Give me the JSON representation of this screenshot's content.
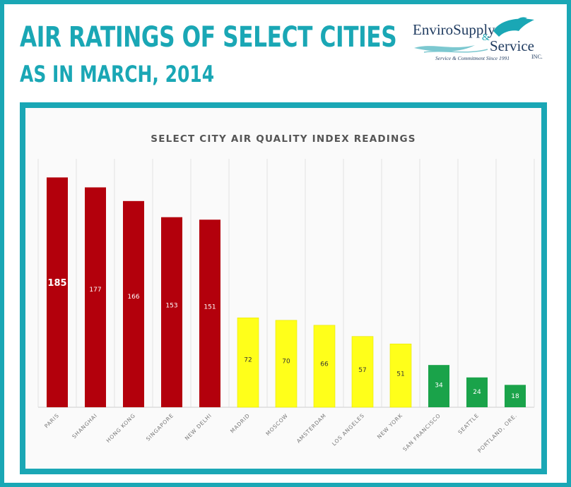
{
  "header": {
    "title": "AIR RATINGS OF SELECT CITIES",
    "subtitle": "AS IN MARCH, 2014"
  },
  "logo": {
    "name_line1": "EnviroSupply",
    "ampersand": "&",
    "name_line2": "Service",
    "suffix": "INC.",
    "tagline": "Service & Commitment Since 1991",
    "icon": "dolphin-icon"
  },
  "colors": {
    "accent": "#1aa7b5",
    "red": "#b3000c",
    "yellow": "#ffff1a",
    "green": "#1aa34a"
  },
  "chart_data": {
    "type": "bar",
    "title": "SELECT CITY AIR QUALITY INDEX READINGS",
    "xlabel": "",
    "ylabel": "",
    "ylim": [
      0,
      200
    ],
    "grid": "vertical",
    "categories": [
      "PARIS",
      "SHANGHAI",
      "HONG KONG",
      "SINGAPORE",
      "NEW DELHI",
      "MADRID",
      "MOSCOW",
      "AMSTERDAM",
      "LOS ANGELES",
      "NEW YORK",
      "SAN FRANCISCO",
      "SEATTLE",
      "PORTLAND, ORE."
    ],
    "values": [
      185,
      177,
      166,
      153,
      151,
      72,
      70,
      66,
      57,
      51,
      34,
      24,
      18
    ],
    "labels": [
      "185",
      "177",
      "166",
      "153",
      "151",
      "72",
      "70",
      "66",
      "57",
      "51",
      "34",
      "24",
      "18"
    ],
    "bar_colors": [
      "red",
      "red",
      "red",
      "red",
      "red",
      "yellow",
      "yellow",
      "yellow",
      "yellow",
      "yellow",
      "green",
      "green",
      "green"
    ]
  }
}
